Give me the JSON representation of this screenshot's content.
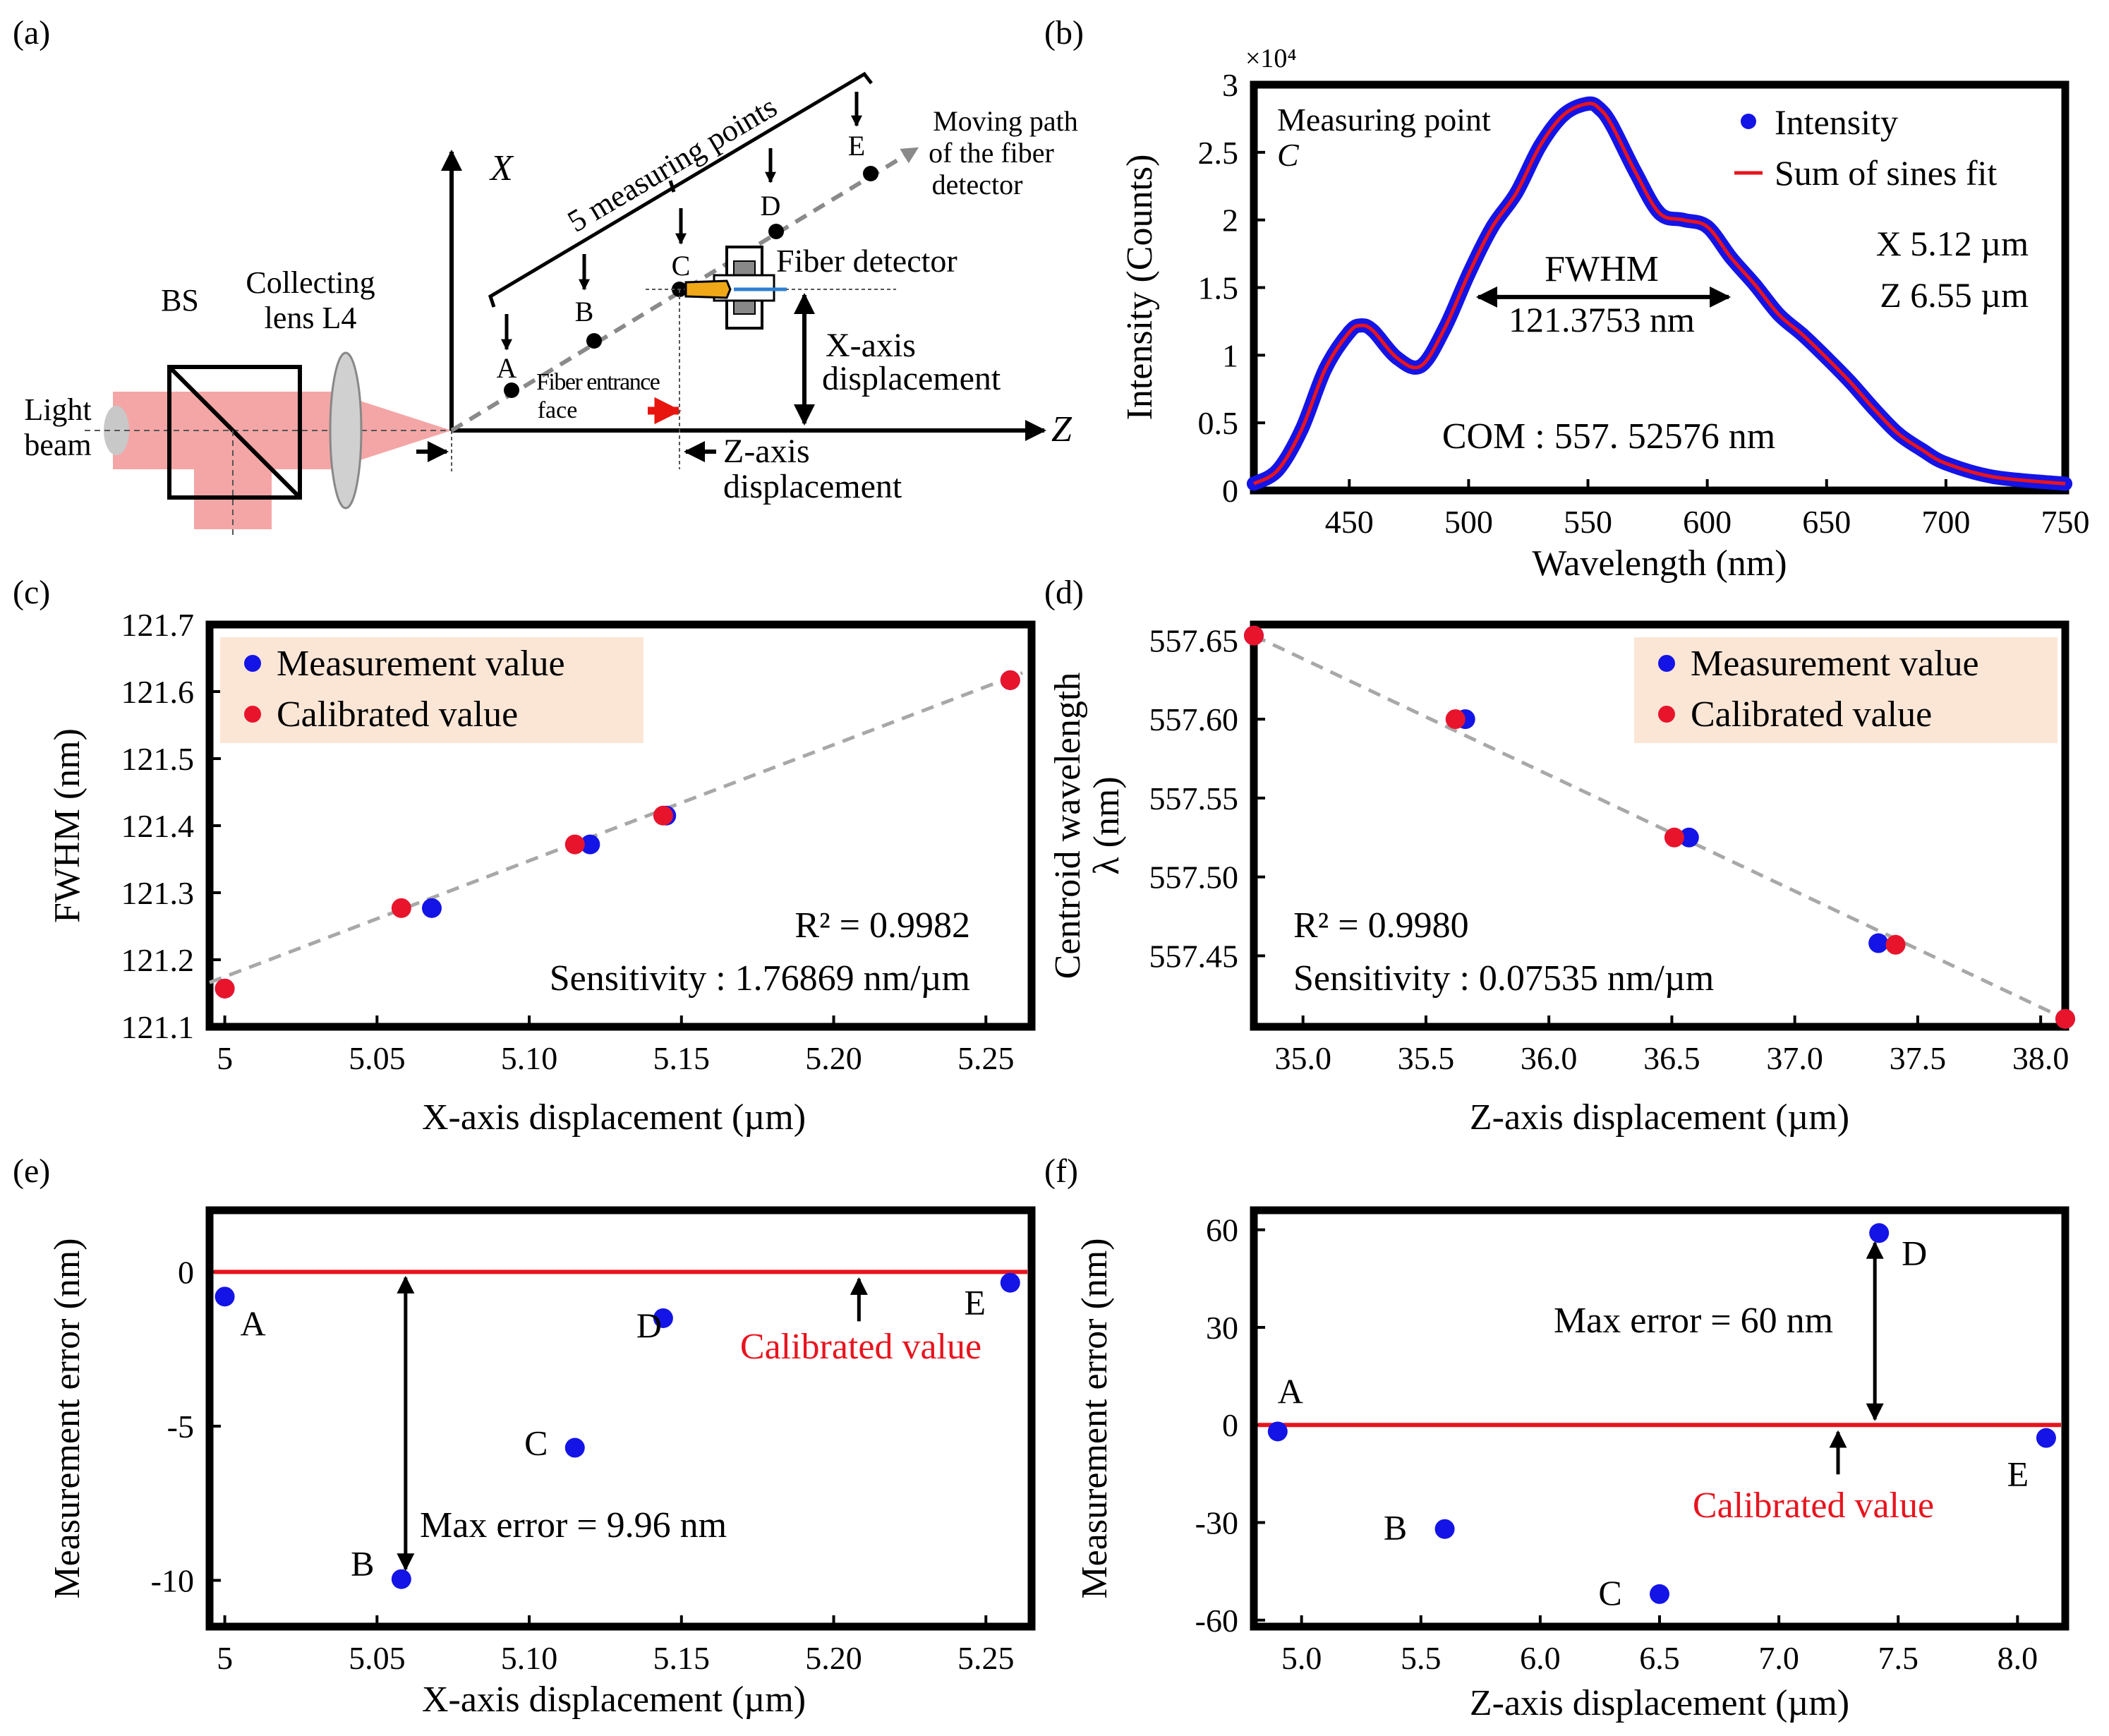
{
  "figure": {
    "panel_labels": [
      "(a)",
      "(b)",
      "(c)",
      "(d)",
      "(e)",
      "(f)"
    ]
  },
  "schematic": {
    "bs": "BS",
    "lens": [
      "Collecting",
      "lens L4"
    ],
    "light_beam": [
      "Light",
      "beam"
    ],
    "axis_x": "X",
    "axis_z": "Z",
    "measuring_points_label": "5 measuring points",
    "points": [
      "A",
      "B",
      "C",
      "D",
      "E"
    ],
    "moving_path": [
      "Moving path",
      "of the fiber",
      "detector"
    ],
    "fiber_detector": "Fiber detector",
    "fiber_entrance": [
      "Fiber entrance",
      "face"
    ],
    "x_displacement": [
      "X-axis",
      "displacement"
    ],
    "z_displacement": [
      "Z-axis",
      "displacement"
    ],
    "colors": {
      "beam": "#f4a6a6",
      "arrow_red": "#e8140e",
      "path_gray": "#8a8a8a",
      "fiber_orange": "#f0a818",
      "fiber_blue": "#2f7fd0"
    }
  },
  "chart_data": [
    {
      "id": "b",
      "type": "line",
      "title": "",
      "xlabel": "Wavelength (nm)",
      "ylabel": "Intensity (Counts)",
      "y_multiplier": "×10⁴",
      "xlim": [
        410,
        750
      ],
      "ylim": [
        0,
        3
      ],
      "xticks": [
        450,
        500,
        550,
        600,
        650,
        700,
        750
      ],
      "yticks": [
        0,
        0.5,
        1,
        1.5,
        2,
        2.5,
        3
      ],
      "ytick_labels": [
        "0",
        "0.5",
        "1",
        "1.5",
        "2",
        "2.5",
        "3"
      ],
      "series": [
        {
          "name": "Intensity",
          "kind": "markers",
          "color": "#1414e6",
          "x": [
            410,
            420,
            430,
            440,
            450,
            455,
            460,
            470,
            480,
            490,
            500,
            510,
            520,
            530,
            540,
            550,
            555,
            560,
            570,
            580,
            590,
            600,
            610,
            620,
            630,
            640,
            650,
            660,
            670,
            680,
            690,
            700,
            720,
            750
          ],
          "y": [
            0.05,
            0.15,
            0.45,
            0.9,
            1.17,
            1.22,
            1.18,
            0.98,
            0.92,
            1.2,
            1.6,
            1.95,
            2.2,
            2.55,
            2.78,
            2.86,
            2.82,
            2.7,
            2.35,
            2.05,
            2.0,
            1.95,
            1.72,
            1.52,
            1.3,
            1.15,
            0.98,
            0.8,
            0.6,
            0.42,
            0.3,
            0.2,
            0.1,
            0.05
          ]
        },
        {
          "name": "Sum of sines fit",
          "kind": "line",
          "color": "#e8141e",
          "x": [
            410,
            420,
            430,
            440,
            450,
            455,
            460,
            470,
            480,
            490,
            500,
            510,
            520,
            530,
            540,
            550,
            555,
            560,
            570,
            580,
            590,
            600,
            610,
            620,
            630,
            640,
            650,
            660,
            670,
            680,
            690,
            700,
            720,
            750
          ],
          "y": [
            0.05,
            0.15,
            0.45,
            0.9,
            1.17,
            1.22,
            1.18,
            0.98,
            0.92,
            1.2,
            1.6,
            1.95,
            2.2,
            2.55,
            2.78,
            2.86,
            2.82,
            2.7,
            2.35,
            2.05,
            2.0,
            1.95,
            1.72,
            1.52,
            1.3,
            1.15,
            0.98,
            0.8,
            0.6,
            0.42,
            0.3,
            0.2,
            0.1,
            0.05
          ]
        }
      ],
      "annotations": {
        "measuring_point": "Measuring point",
        "point_name": "C",
        "fwhm_label": "FWHM",
        "fwhm_value": "121.3753 nm",
        "fwhm_range": [
          504,
          609
        ],
        "fwhm_level": 1.43,
        "com": "COM : 557. 52576 nm",
        "x_pos": "X 5.12 µm",
        "z_pos": "Z 6.55 µm"
      },
      "legend": {
        "position": "top-right",
        "entries": [
          "Intensity",
          "Sum of sines fit"
        ]
      }
    },
    {
      "id": "c",
      "type": "scatter",
      "xlabel": "X-axis displacement (µm)",
      "ylabel": "FWHM (nm)",
      "xlim": [
        4.995,
        5.265
      ],
      "ylim": [
        121.1,
        121.7
      ],
      "xticks": [
        5,
        5.05,
        5.1,
        5.15,
        5.2,
        5.25
      ],
      "xtick_labels": [
        "5",
        "5.05",
        "5.10",
        "5.15",
        "5.20",
        "5.25"
      ],
      "yticks": [
        121.1,
        121.2,
        121.3,
        121.4,
        121.5,
        121.6,
        121.7
      ],
      "ytick_labels": [
        "121.1",
        "121.2",
        "121.3",
        "121.4",
        "121.5",
        "121.6",
        "121.7"
      ],
      "series": [
        {
          "name": "Measurement value",
          "color": "#1414e6",
          "x": [
            5.0,
            5.068,
            5.12,
            5.145,
            5.258
          ],
          "y": [
            121.157,
            121.277,
            121.372,
            121.415,
            121.617
          ]
        },
        {
          "name": "Calibrated value",
          "color": "#e8142c",
          "x": [
            5.0,
            5.058,
            5.115,
            5.144,
            5.258
          ],
          "y": [
            121.157,
            121.277,
            121.372,
            121.415,
            121.617
          ]
        }
      ],
      "fit_line": {
        "x": [
          4.995,
          5.262
        ],
        "y": [
          121.166,
          121.628
        ],
        "style": "dashed",
        "color": "#a8a8a8"
      },
      "annotations": {
        "r2": "R² = 0.9982",
        "sensitivity": "Sensitivity : 1.76869 nm/µm"
      },
      "legend": {
        "position": "top-left",
        "background": "#fbe6d6",
        "entries": [
          "Measurement value",
          "Calibrated value"
        ]
      }
    },
    {
      "id": "d",
      "type": "scatter",
      "xlabel": "Z-axis displacement (µm)",
      "ylabel": "Centroid wavelength λ (nm)",
      "ylabel_lines": [
        "Centroid wavelength",
        "λ (nm)"
      ],
      "xlim": [
        34.8,
        38.1
      ],
      "ylim": [
        557.405,
        557.66
      ],
      "xticks": [
        35.0,
        35.5,
        36.0,
        36.5,
        37.0,
        37.5,
        38.0
      ],
      "xtick_labels": [
        "35.0",
        "35.5",
        "36.0",
        "36.5",
        "37.0",
        "37.5",
        "38.0"
      ],
      "yticks": [
        557.45,
        557.5,
        557.55,
        557.6,
        557.65
      ],
      "ytick_labels": [
        "557.45",
        "557.50",
        "557.55",
        "557.60",
        "557.65"
      ],
      "series": [
        {
          "name": "Measurement value",
          "color": "#1414e6",
          "x": [
            34.8,
            35.66,
            36.57,
            37.34,
            38.1
          ],
          "y": [
            557.653,
            557.6,
            557.525,
            557.458,
            557.41
          ]
        },
        {
          "name": "Calibrated value",
          "color": "#e8142c",
          "x": [
            34.8,
            35.62,
            36.51,
            37.41,
            38.1
          ],
          "y": [
            557.653,
            557.6,
            557.525,
            557.457,
            557.41
          ]
        }
      ],
      "fit_line": {
        "x": [
          34.8,
          38.1
        ],
        "y": [
          557.653,
          557.41
        ],
        "style": "dashed",
        "color": "#a8a8a8"
      },
      "annotations": {
        "r2": "R² = 0.9980",
        "sensitivity": "Sensitivity : 0.07535 nm/µm"
      },
      "legend": {
        "position": "top-right",
        "background": "#fbe6d6",
        "entries": [
          "Measurement value",
          "Calibrated value"
        ]
      }
    },
    {
      "id": "e",
      "type": "scatter",
      "xlabel": "X-axis displacement (µm)",
      "ylabel": "Measurement error (nm)",
      "xlim": [
        4.995,
        5.265
      ],
      "ylim": [
        -11.5,
        2
      ],
      "xticks": [
        5,
        5.05,
        5.1,
        5.15,
        5.2,
        5.25
      ],
      "xtick_labels": [
        "5",
        "5.05",
        "5.10",
        "5.15",
        "5.20",
        "5.25"
      ],
      "yticks": [
        0,
        -5,
        -10
      ],
      "ytick_labels": [
        "0",
        "-5",
        "-10"
      ],
      "series": [
        {
          "name": "Measurement error",
          "color": "#1414e6",
          "labels": [
            "A",
            "B",
            "C",
            "D",
            "E"
          ],
          "x": [
            5.0,
            5.058,
            5.115,
            5.144,
            5.258
          ],
          "y": [
            -0.8,
            -9.96,
            -5.7,
            -1.5,
            -0.35
          ]
        }
      ],
      "reference_line": {
        "y": 0,
        "color": "#e8141e",
        "label": "Calibrated value"
      },
      "annotations": {
        "max_error": "Max error = 9.96 nm"
      }
    },
    {
      "id": "f",
      "type": "scatter",
      "xlabel": "Z-axis displacement (µm)",
      "ylabel": "Measurement error (nm)",
      "xlim": [
        4.8,
        8.2
      ],
      "ylim": [
        -62,
        66
      ],
      "xticks": [
        5.0,
        5.5,
        6.0,
        6.5,
        7.0,
        7.5,
        8.0
      ],
      "xtick_labels": [
        "5.0",
        "5.5",
        "6.0",
        "6.5",
        "7.0",
        "7.5",
        "8.0"
      ],
      "yticks": [
        60,
        30,
        0,
        -30,
        -60
      ],
      "ytick_labels": [
        "60",
        "30",
        "0",
        "-30",
        "-60"
      ],
      "series": [
        {
          "name": "Measurement error",
          "color": "#1414e6",
          "labels": [
            "A",
            "B",
            "C",
            "D",
            "E"
          ],
          "x": [
            4.9,
            5.6,
            6.5,
            7.42,
            8.12
          ],
          "y": [
            -2,
            -32,
            -52,
            59,
            -4
          ]
        }
      ],
      "reference_line": {
        "y": 0,
        "color": "#e8141e",
        "label": "Calibrated value"
      },
      "annotations": {
        "max_error": "Max error = 60 nm"
      }
    }
  ]
}
